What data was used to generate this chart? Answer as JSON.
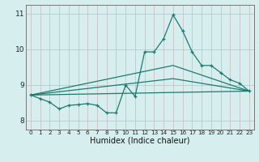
{
  "xlabel": "Humidex (Indice chaleur)",
  "bg_color": "#d6eeee",
  "line_color": "#1e7a6e",
  "xlim": [
    -0.5,
    23.5
  ],
  "ylim": [
    7.75,
    11.25
  ],
  "yticks": [
    8,
    9,
    10,
    11
  ],
  "xticks": [
    0,
    1,
    2,
    3,
    4,
    5,
    6,
    7,
    8,
    9,
    10,
    11,
    12,
    13,
    14,
    15,
    16,
    17,
    18,
    19,
    20,
    21,
    22,
    23
  ],
  "line1_x": [
    0,
    1,
    2,
    3,
    4,
    5,
    6,
    7,
    8,
    9,
    10,
    11,
    12,
    13,
    14,
    15,
    16,
    17,
    18,
    19,
    20,
    21,
    22,
    23
  ],
  "line1_y": [
    8.72,
    8.62,
    8.52,
    8.33,
    8.43,
    8.45,
    8.48,
    8.43,
    8.22,
    8.22,
    9.0,
    8.68,
    9.93,
    9.93,
    10.3,
    10.97,
    10.52,
    9.93,
    9.55,
    9.55,
    9.35,
    9.15,
    9.05,
    8.83
  ],
  "line2_x": [
    0,
    23
  ],
  "line2_y": [
    8.72,
    8.83
  ],
  "line3_x": [
    0,
    15,
    23
  ],
  "line3_y": [
    8.72,
    9.18,
    8.83
  ],
  "line4_x": [
    0,
    15,
    23
  ],
  "line4_y": [
    8.72,
    9.55,
    8.83
  ]
}
